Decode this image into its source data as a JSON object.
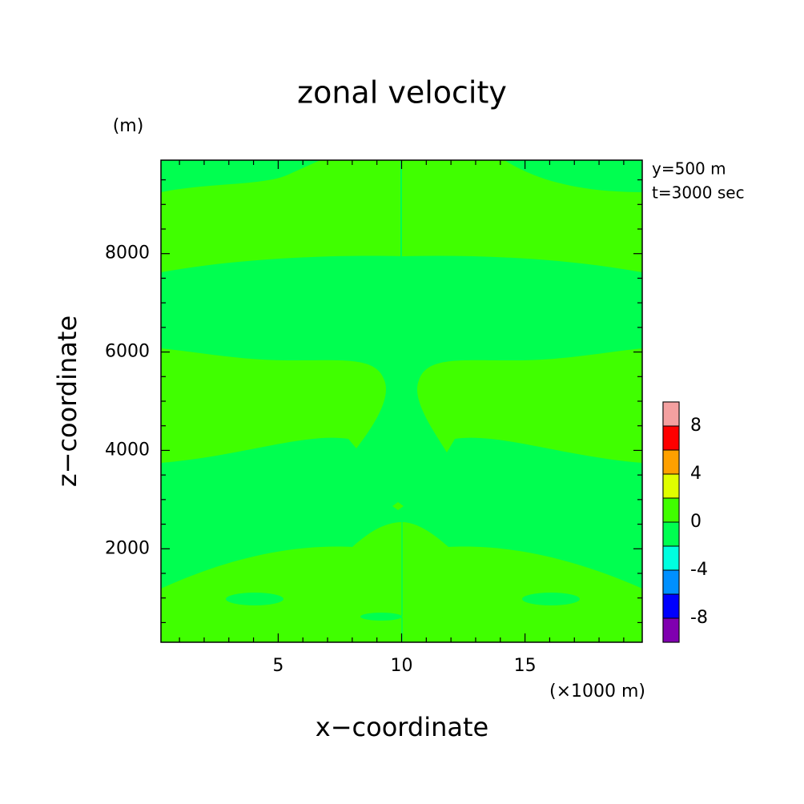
{
  "chart_data": {
    "type": "contour",
    "title": "zonal velocity",
    "xlabel": "x−coordinate",
    "ylabel": "z−coordinate",
    "xunit": "(×1000 m)",
    "yunit": "(m)",
    "annotations": [
      "y=500 m",
      "t=3000 sec"
    ],
    "xlim": [
      0.25,
      19.75
    ],
    "xticks": [
      5,
      10,
      15
    ],
    "xminorticks": [
      1,
      2,
      3,
      4,
      6,
      7,
      8,
      9,
      11,
      12,
      13,
      14,
      16,
      17,
      18,
      19
    ],
    "ylim": [
      100,
      9900
    ],
    "yticks": [
      2000,
      4000,
      6000,
      8000
    ],
    "yminorticks": [
      500,
      1000,
      1500,
      2500,
      3000,
      3500,
      4500,
      5000,
      5500,
      6500,
      7000,
      7500,
      8500,
      9000,
      9500
    ],
    "colorbar": {
      "levels": [
        -10,
        -8,
        -6,
        -4,
        -2,
        0,
        2,
        4,
        6,
        8,
        10
      ],
      "colors": [
        "#8000b0",
        "#0000ff",
        "#0090ff",
        "#00ffe0",
        "#00ff50",
        "#40ff00",
        "#e0ff00",
        "#ffa000",
        "#ff0000",
        "#f4a0a0"
      ],
      "ticks": [
        -8,
        -4,
        0,
        4,
        8
      ]
    }
  }
}
